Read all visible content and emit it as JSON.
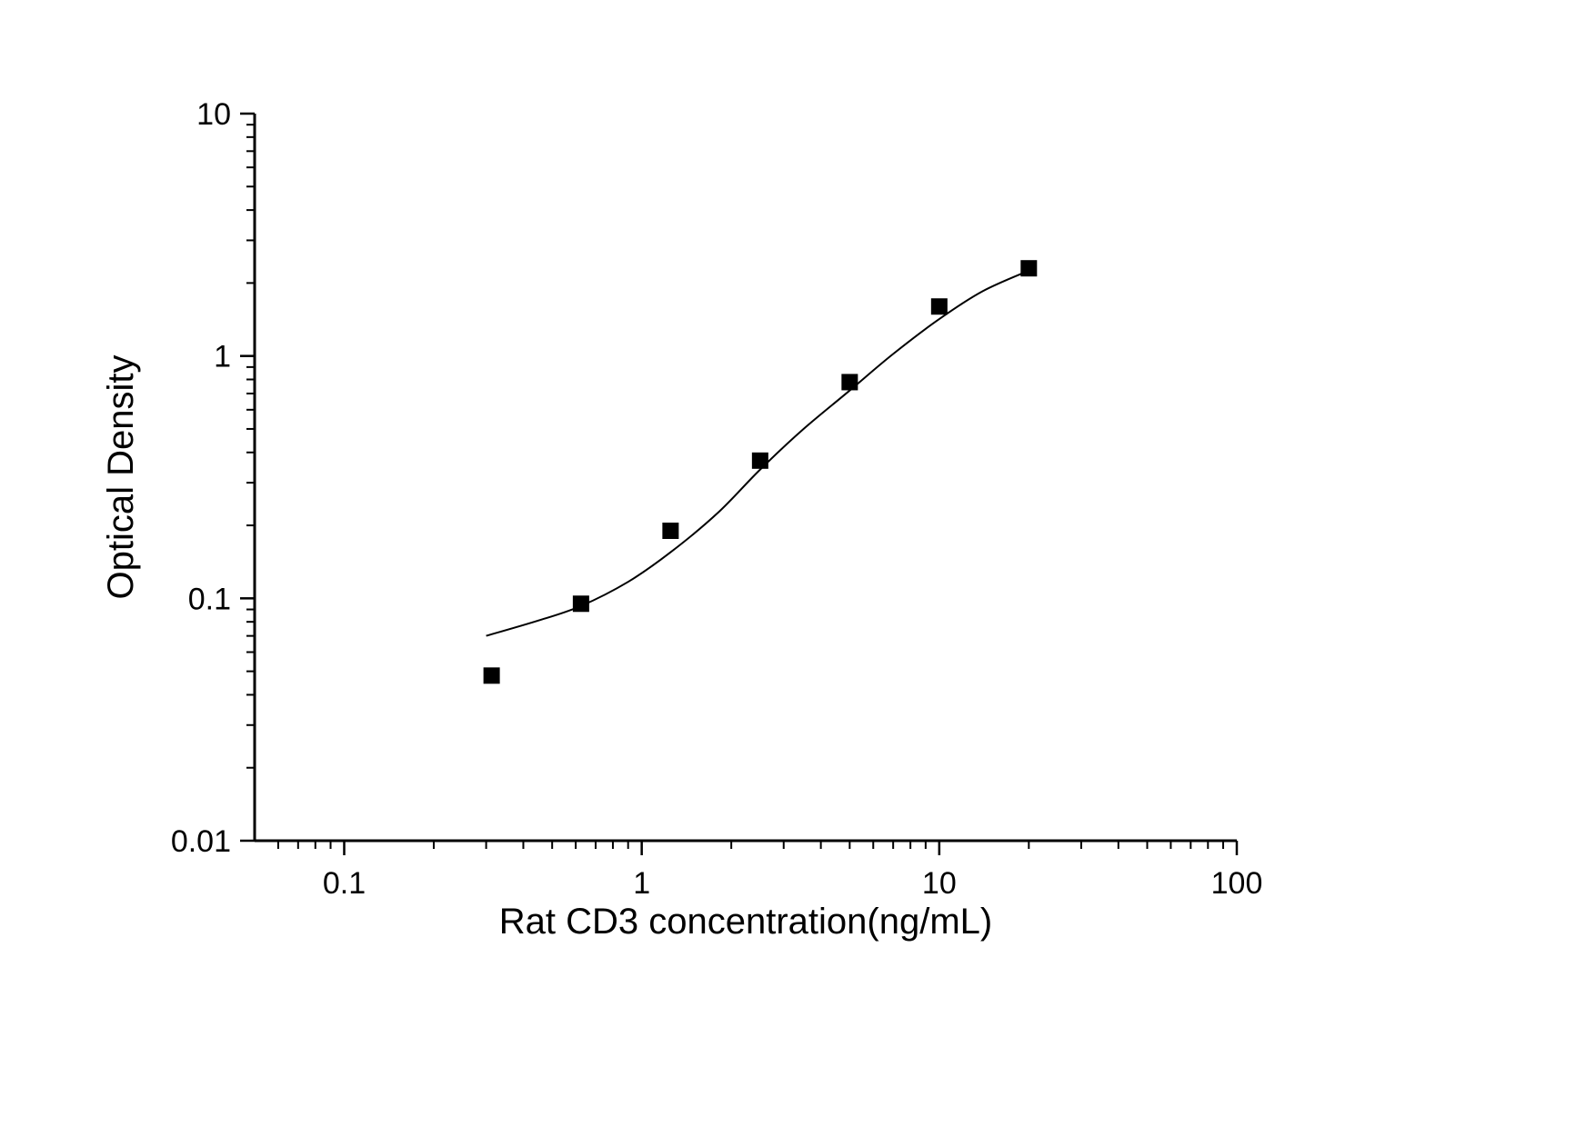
{
  "chart_data": {
    "type": "scatter",
    "title": "",
    "xlabel": "Rat CD3 concentration(ng/mL)",
    "ylabel": "Optical Density",
    "x_scale": "log",
    "y_scale": "log",
    "xlim": [
      0.05,
      100
    ],
    "ylim": [
      0.01,
      10
    ],
    "x_ticks": [
      0.1,
      1,
      10,
      100
    ],
    "y_ticks": [
      0.01,
      0.1,
      1,
      10
    ],
    "grid": false,
    "legend": null,
    "points": [
      {
        "x": 0.313,
        "y": 0.048
      },
      {
        "x": 0.625,
        "y": 0.095
      },
      {
        "x": 1.25,
        "y": 0.19
      },
      {
        "x": 2.5,
        "y": 0.37
      },
      {
        "x": 5,
        "y": 0.78
      },
      {
        "x": 10,
        "y": 1.6
      },
      {
        "x": 20,
        "y": 2.3
      }
    ],
    "fit_curve": [
      [
        0.3,
        0.07
      ],
      [
        0.45,
        0.081
      ],
      [
        0.625,
        0.093
      ],
      [
        0.9,
        0.117
      ],
      [
        1.25,
        0.155
      ],
      [
        1.8,
        0.225
      ],
      [
        2.5,
        0.34
      ],
      [
        3.5,
        0.5
      ],
      [
        5.0,
        0.72
      ],
      [
        7.0,
        1.02
      ],
      [
        10.0,
        1.42
      ],
      [
        14.0,
        1.85
      ],
      [
        20.0,
        2.25
      ]
    ],
    "marker": {
      "shape": "square",
      "color": "#000000",
      "size": 18
    },
    "line_color": "#000000",
    "axis_color": "#000000"
  }
}
